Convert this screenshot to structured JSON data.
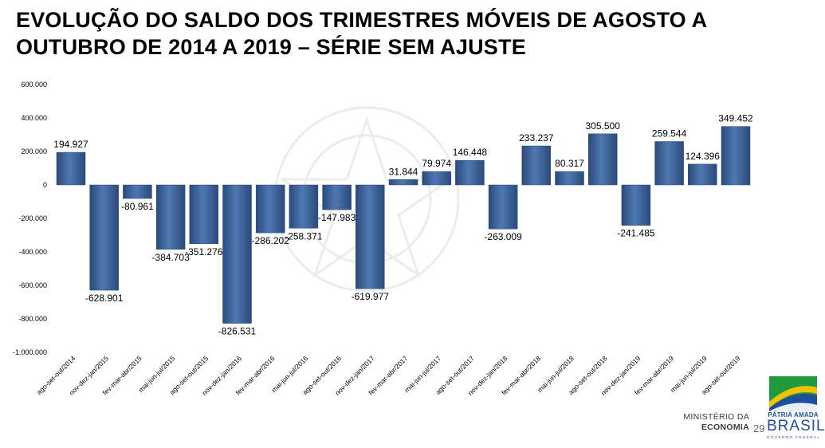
{
  "title": {
    "line1": "EVOLUÇÃO DO SALDO DOS TRIMESTRES MÓVEIS DE AGOSTO A",
    "line2": "OUTUBRO DE 2014 A 2019 – SÉRIE SEM AJUSTE"
  },
  "chart_data": {
    "type": "bar",
    "title": "EVOLUÇÃO DO SALDO DOS TRIMESTRES MÓVEIS DE AGOSTO A OUTUBRO DE 2014 A 2019 – SÉRIE SEM AJUSTE",
    "xlabel": "",
    "ylabel": "",
    "ylim": [
      -1000000,
      600000
    ],
    "yticks": [
      600000,
      400000,
      200000,
      0,
      -200000,
      -400000,
      -600000,
      -800000,
      -1000000
    ],
    "ytick_labels": [
      "600.000",
      "400.000",
      "200.000",
      "0",
      "-200.000",
      "-400.000",
      "-600.000",
      "-800.000",
      "-1.000.000"
    ],
    "grid": false,
    "bar_color": "#3a5f95",
    "categories": [
      "ago-set-out/2014",
      "nov-dez-jan/2015",
      "fev-mar-abr/2015",
      "mai-jun-jul/2015",
      "ago-set-out/2015",
      "nov-dez-jan/2016",
      "fev-mar-abr/2016",
      "mai-jun-jul/2016",
      "ago-set-out/2016",
      "nov-dez-jan/2017",
      "fev-mar-abr/2017",
      "mai-jun-jul/2017",
      "ago-set-out/2017",
      "nov-dez-jan/2018",
      "fev-mar-abr/2018",
      "mai-jun-jul/2018",
      "ago-set-out/2018",
      "nov-dez-jan/2019",
      "fev-mar-abr/2019",
      "mai-jun-jul/2019",
      "ago-set-out/2019"
    ],
    "values": [
      194927,
      -628901,
      -80961,
      -384703,
      -351276,
      -826531,
      -286202,
      -258371,
      -147983,
      -619977,
      31844,
      79974,
      146448,
      -263009,
      233237,
      80317,
      305500,
      -241485,
      259544,
      124396,
      349452
    ],
    "labels": [
      "194.927",
      "-628.901",
      "-80.961",
      "-384.703",
      "-351.276",
      "-826.531",
      "-286.202",
      "-258.371",
      "-147.983",
      "-619.977",
      "31.844",
      "79.974",
      "146.448",
      "-263.009",
      "233.237",
      "80.317",
      "305.500",
      "-241.485",
      "259.544",
      "124.396",
      "349.452"
    ]
  },
  "footer": {
    "ministry_line1": "MINISTÉRIO DA",
    "ministry_line2": "ECONOMIA",
    "page_number": "29"
  },
  "logo": {
    "line1": "PÁTRIA AMADA",
    "line2": "BRASIL",
    "line3": "GOVERNO FEDERAL",
    "colors": {
      "green": "#1f9a3d",
      "yellow": "#f2c200",
      "blue": "#1d4f9c"
    }
  }
}
